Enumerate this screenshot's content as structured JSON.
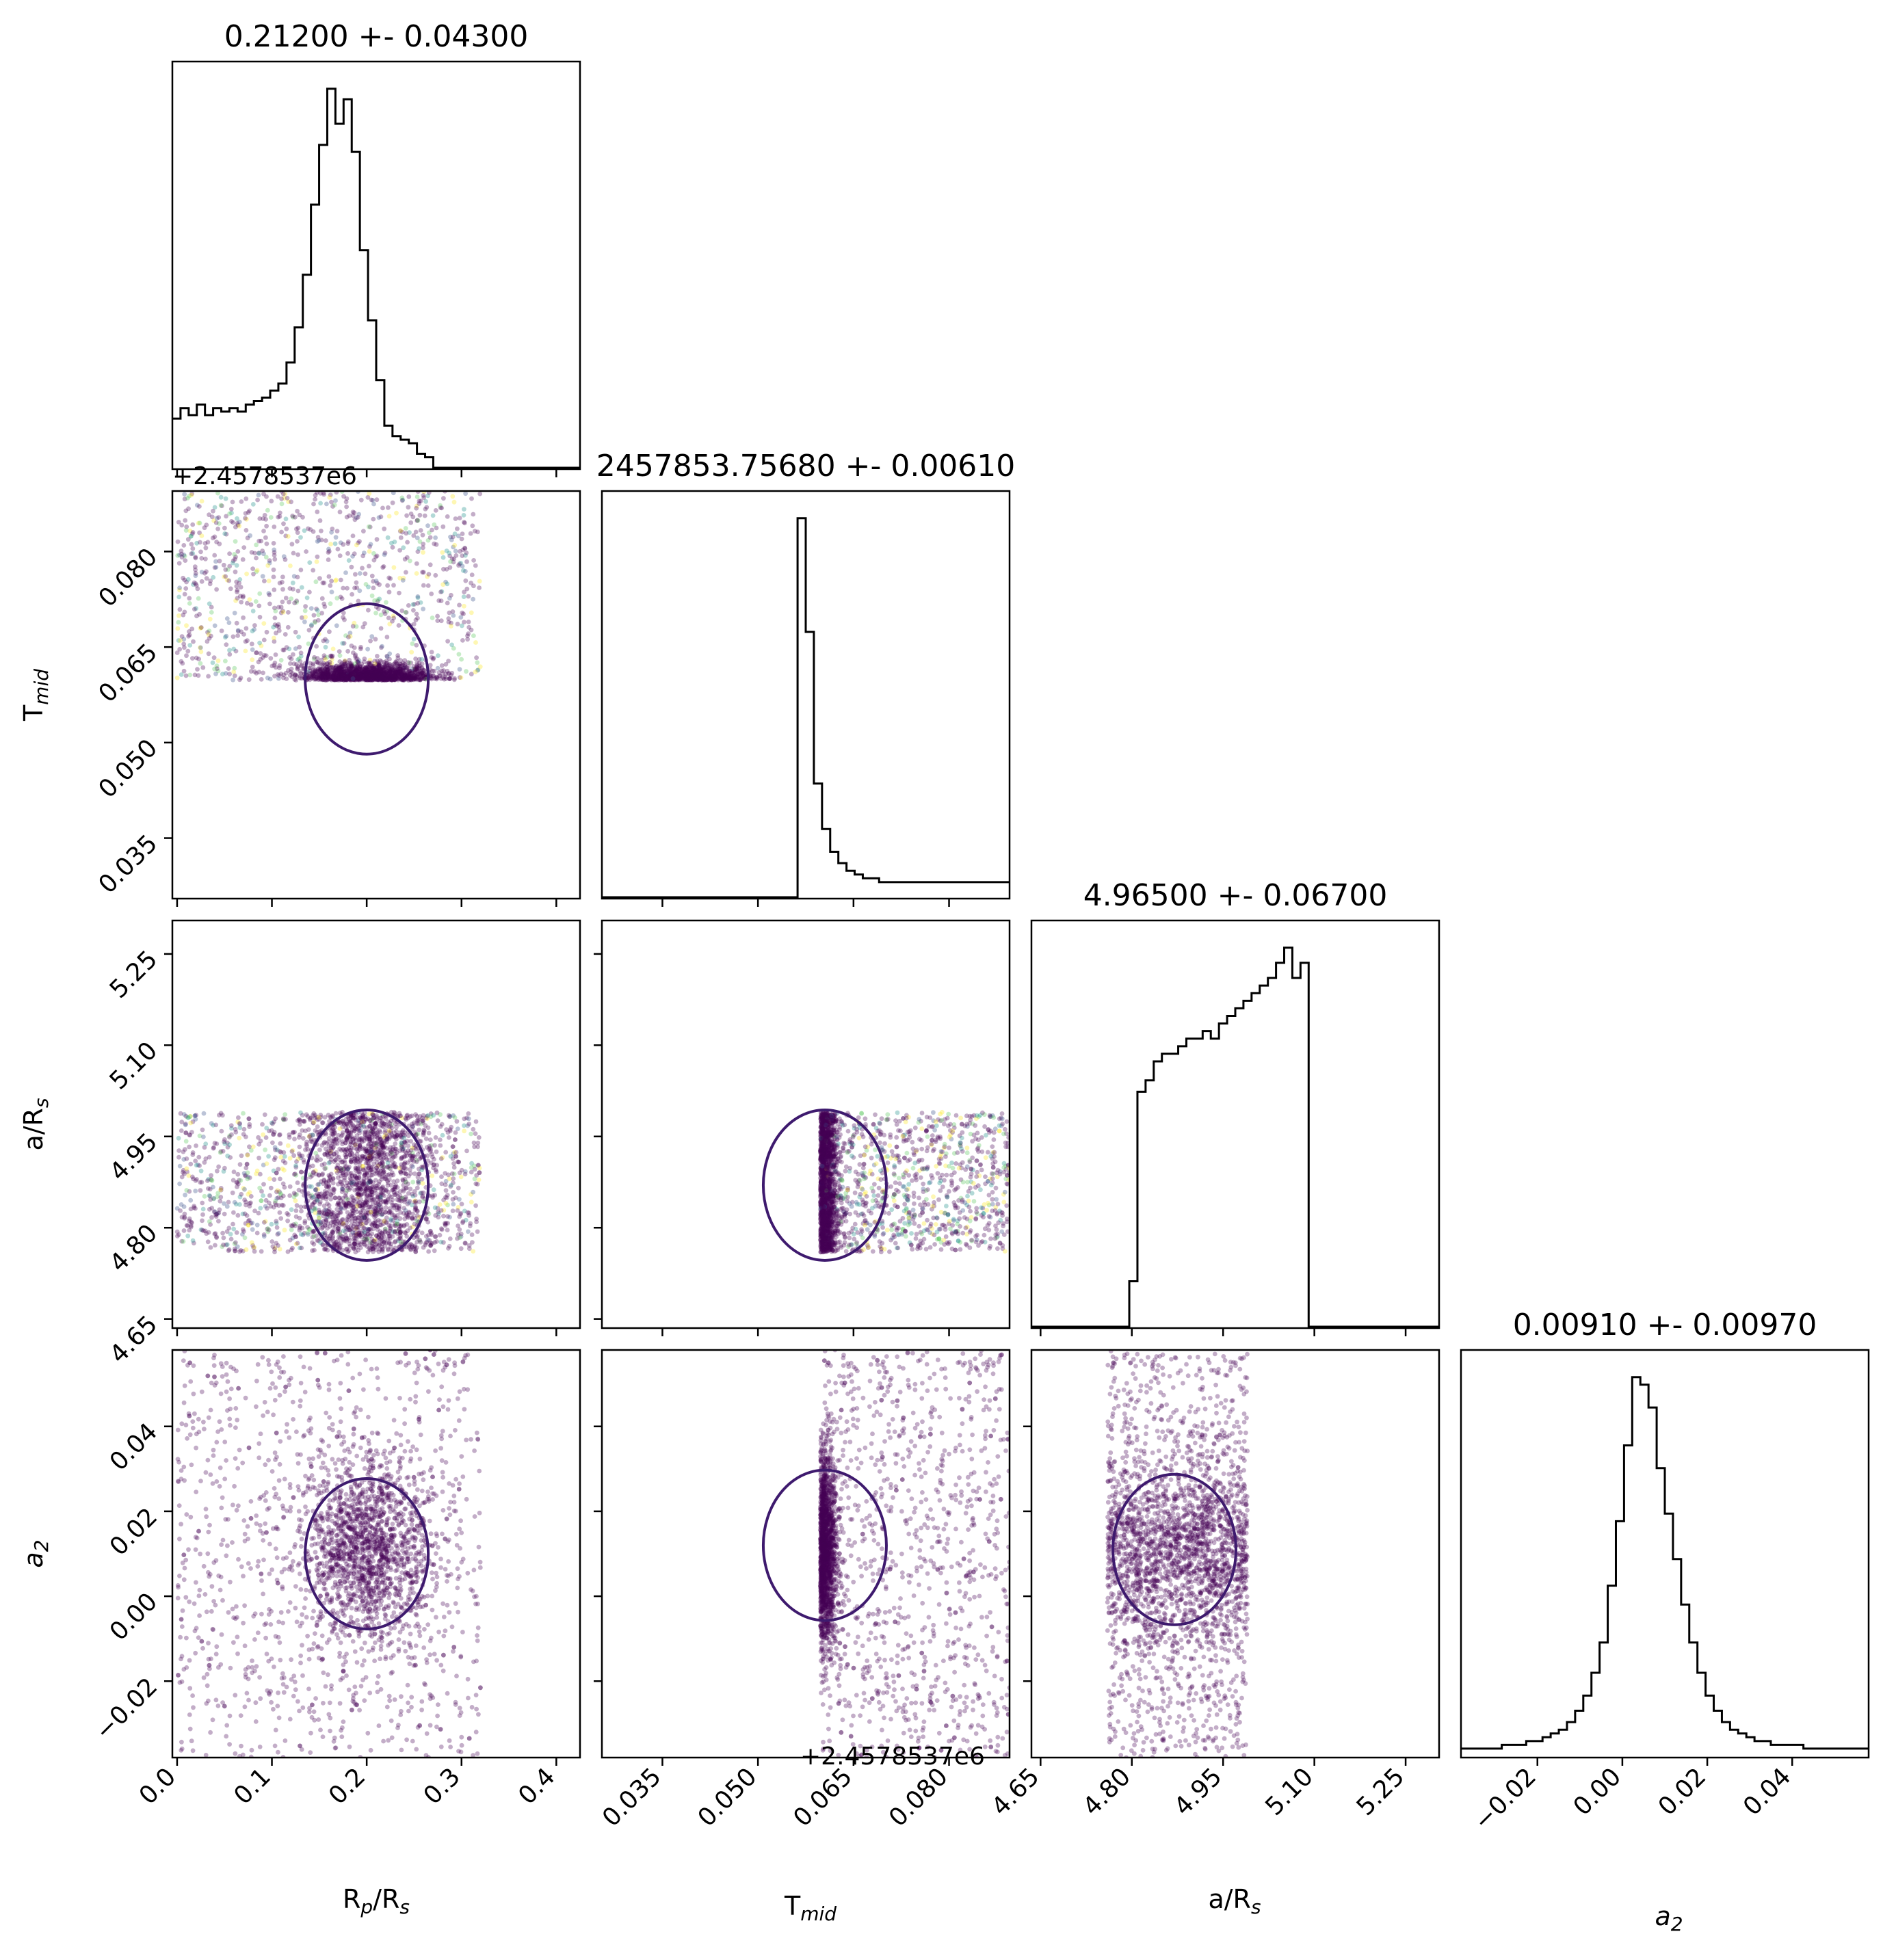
{
  "chart_data": {
    "type": "corner",
    "parameters": [
      {
        "key": "rp",
        "label": "R",
        "sub": "p",
        "label_rest": "/R",
        "sub2": "s"
      },
      {
        "key": "tmid",
        "label": "T",
        "sub": "mid",
        "label_rest": "",
        "sub2": ""
      },
      {
        "key": "ars",
        "label": "a/R",
        "sub": "s",
        "label_rest": "",
        "sub2": ""
      },
      {
        "key": "a2",
        "label": "a",
        "sub": "2",
        "label_rest": "",
        "sub2": "",
        "italic": true
      }
    ],
    "titles": [
      "0.21200 +- 0.04300",
      "2457853.75680 +- 0.00610",
      "4.96500 +- 0.06700",
      "0.00910 +- 0.00970"
    ],
    "offset_text": "+2.4578537e6",
    "ranges": [
      [
        -0.005,
        0.425
      ],
      [
        0.0255,
        0.0895
      ],
      [
        4.635,
        5.305
      ],
      [
        -0.038,
        0.058
      ]
    ],
    "ticks": [
      {
        "values": [
          0.0,
          0.1,
          0.2,
          0.3,
          0.4
        ],
        "labels": [
          "0.0",
          "0.1",
          "0.2",
          "0.3",
          "0.4"
        ]
      },
      {
        "values": [
          0.035,
          0.05,
          0.065,
          0.08
        ],
        "labels": [
          "0.035",
          "0.050",
          "0.065",
          "0.080"
        ]
      },
      {
        "values": [
          4.65,
          4.8,
          4.95,
          5.1,
          5.25
        ],
        "labels": [
          "4.65",
          "4.80",
          "4.95",
          "5.10",
          "5.25"
        ]
      },
      {
        "values": [
          -0.02,
          0.0,
          0.02,
          0.04
        ],
        "labels": [
          "−0.02",
          "0.00",
          "0.02",
          "0.04"
        ]
      }
    ],
    "histograms": [
      {
        "param": 0,
        "edges_range": [
          -0.005,
          0.425
        ],
        "bins": 50,
        "counts": [
          14,
          17,
          15,
          18,
          15,
          17,
          16,
          17,
          16,
          18,
          19,
          20,
          22,
          24,
          30,
          40,
          55,
          75,
          92,
          108,
          98,
          105,
          90,
          62,
          42,
          25,
          12,
          9,
          8,
          7,
          4,
          3,
          0,
          0,
          0,
          0,
          0,
          0,
          0,
          0,
          0,
          0,
          0,
          0,
          0,
          0,
          0,
          0,
          0,
          0
        ]
      },
      {
        "param": 1,
        "edges_range": [
          0.0255,
          0.0895
        ],
        "bins": 50,
        "counts": [
          0,
          0,
          0,
          0,
          0,
          0,
          0,
          0,
          0,
          0,
          0,
          0,
          0,
          0,
          0,
          0,
          0,
          0,
          0,
          0,
          0,
          0,
          0,
          0,
          100,
          70,
          30,
          18,
          12,
          9,
          7,
          6,
          5,
          5,
          4,
          4,
          4,
          4,
          4,
          4,
          4,
          4,
          4,
          4,
          4,
          4,
          4,
          4,
          4,
          4
        ]
      },
      {
        "param": 2,
        "edges_range": [
          4.635,
          5.305
        ],
        "bins": 50,
        "counts": [
          0,
          0,
          0,
          0,
          0,
          0,
          0,
          0,
          0,
          0,
          0,
          0,
          12,
          62,
          65,
          70,
          72,
          72,
          74,
          76,
          76,
          78,
          76,
          80,
          82,
          84,
          86,
          88,
          90,
          92,
          96,
          100,
          92,
          96,
          0,
          0,
          0,
          0,
          0,
          0,
          0,
          0,
          0,
          0,
          0,
          0,
          0,
          0,
          0,
          0
        ]
      },
      {
        "param": 3,
        "edges_range": [
          -0.038,
          0.058
        ],
        "bins": 50,
        "counts": [
          2,
          2,
          2,
          2,
          2,
          3,
          3,
          3,
          4,
          4,
          5,
          6,
          7,
          9,
          12,
          16,
          22,
          30,
          45,
          62,
          82,
          100,
          98,
          92,
          76,
          64,
          52,
          40,
          30,
          22,
          16,
          12,
          9,
          7,
          6,
          5,
          4,
          4,
          3,
          3,
          3,
          3,
          2,
          2,
          2,
          2,
          2,
          2,
          2,
          2
        ]
      }
    ],
    "scatter_summary": [
      {
        "x": 0,
        "y": 1,
        "x_span": [
          0.0,
          0.32
        ],
        "y_span": [
          0.0595,
          0.088
        ],
        "dense_at": [
          0.2,
          0.06
        ]
      },
      {
        "x": 0,
        "y": 2,
        "x_span": [
          0.0,
          0.32
        ],
        "y_span": [
          4.76,
          4.99
        ],
        "dense_at": [
          0.2,
          4.87
        ]
      },
      {
        "x": 0,
        "y": 3,
        "x_span": [
          0.0,
          0.32
        ],
        "y_span": [
          -0.038,
          0.058
        ],
        "dense_at": [
          0.2,
          0.01
        ]
      },
      {
        "x": 1,
        "y": 2,
        "x_span": [
          0.0598,
          0.0895
        ],
        "y_span": [
          4.76,
          4.99
        ],
        "dense_at": [
          0.0605,
          4.87
        ]
      },
      {
        "x": 1,
        "y": 3,
        "x_span": [
          0.0598,
          0.0895
        ],
        "y_span": [
          -0.038,
          0.058
        ],
        "dense_at": [
          0.0605,
          0.012
        ]
      },
      {
        "x": 2,
        "y": 3,
        "x_span": [
          4.76,
          4.98
        ],
        "y_span": [
          -0.038,
          0.058
        ],
        "dense_at": [
          4.87,
          0.011
        ]
      }
    ],
    "colors": {
      "hist": "#000000",
      "scatter_main": "#440154",
      "scatter_alt": [
        "#fde725",
        "#21918c",
        "#3b528b",
        "#5ec962"
      ],
      "contour": "#3e1a6e"
    }
  }
}
